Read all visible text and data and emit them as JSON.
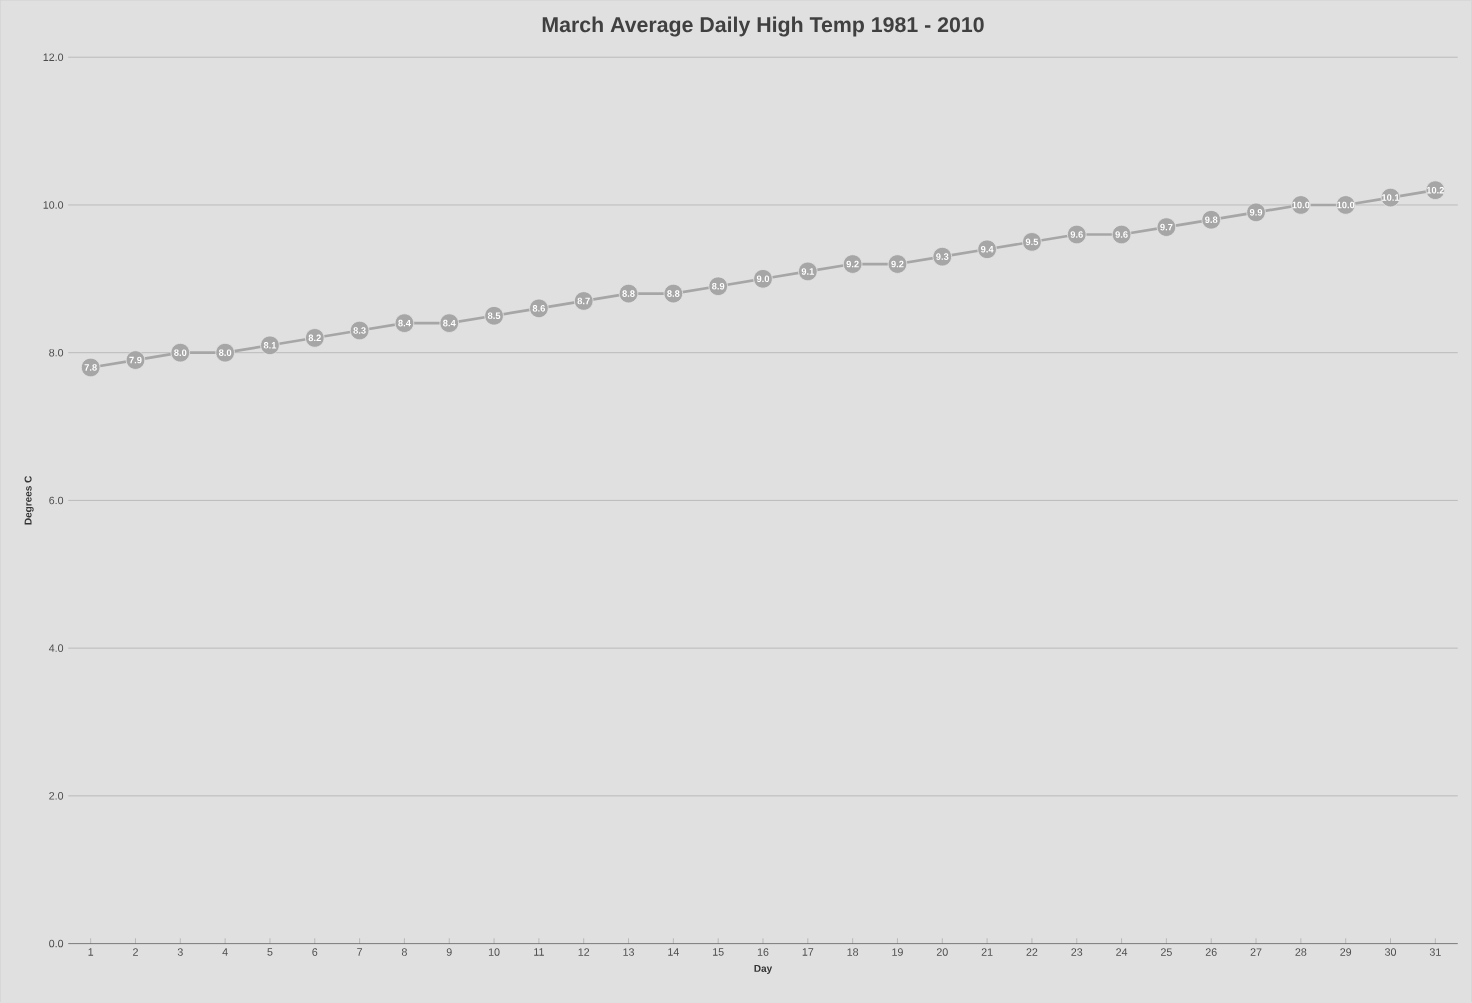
{
  "chart_data": {
    "type": "line",
    "title": "March Average Daily High Temp 1981 - 2010",
    "xlabel": "Day",
    "ylabel": "Degrees C",
    "categories": [
      "1",
      "2",
      "3",
      "4",
      "5",
      "6",
      "7",
      "8",
      "9",
      "10",
      "11",
      "12",
      "13",
      "14",
      "15",
      "16",
      "17",
      "18",
      "19",
      "20",
      "21",
      "22",
      "23",
      "24",
      "25",
      "26",
      "27",
      "28",
      "29",
      "30",
      "31"
    ],
    "series": [
      {
        "color": "#a6a6a6",
        "values": [
          7.8,
          7.9,
          8.0,
          8.0,
          8.1,
          8.2,
          8.3,
          8.4,
          8.4,
          8.5,
          8.6,
          8.7,
          8.8,
          8.8,
          8.9,
          9.0,
          9.1,
          9.2,
          9.2,
          9.3,
          9.4,
          9.5,
          9.6,
          9.6,
          9.7,
          9.8,
          9.9,
          10.0,
          10.0,
          10.1,
          10.2
        ],
        "value_labels": [
          "7.8",
          "7.9",
          "8.0",
          "8.0",
          "8.1",
          "8.2",
          "8.3",
          "8.4",
          "8.4",
          "8.5",
          "8.6",
          "8.7",
          "8.8",
          "8.8",
          "8.9",
          "9.0",
          "9.1",
          "9.2",
          "9.2",
          "9.3",
          "9.4",
          "9.5",
          "9.6",
          "9.6",
          "9.7",
          "9.8",
          "9.9",
          "10.0",
          "10.0",
          "10.1",
          "10.2"
        ]
      }
    ],
    "ylim": [
      0,
      12
    ],
    "yticks": [
      {
        "value": 0,
        "label": "0.0"
      },
      {
        "value": 2,
        "label": "2.0"
      },
      {
        "value": 4,
        "label": "4.0"
      },
      {
        "value": 6,
        "label": "6.0"
      },
      {
        "value": 8,
        "label": "8.0"
      },
      {
        "value": 10,
        "label": "10.0"
      },
      {
        "value": 12,
        "label": "12.0"
      }
    ],
    "grid": "y",
    "marker": "circle",
    "line_style": "solid"
  }
}
